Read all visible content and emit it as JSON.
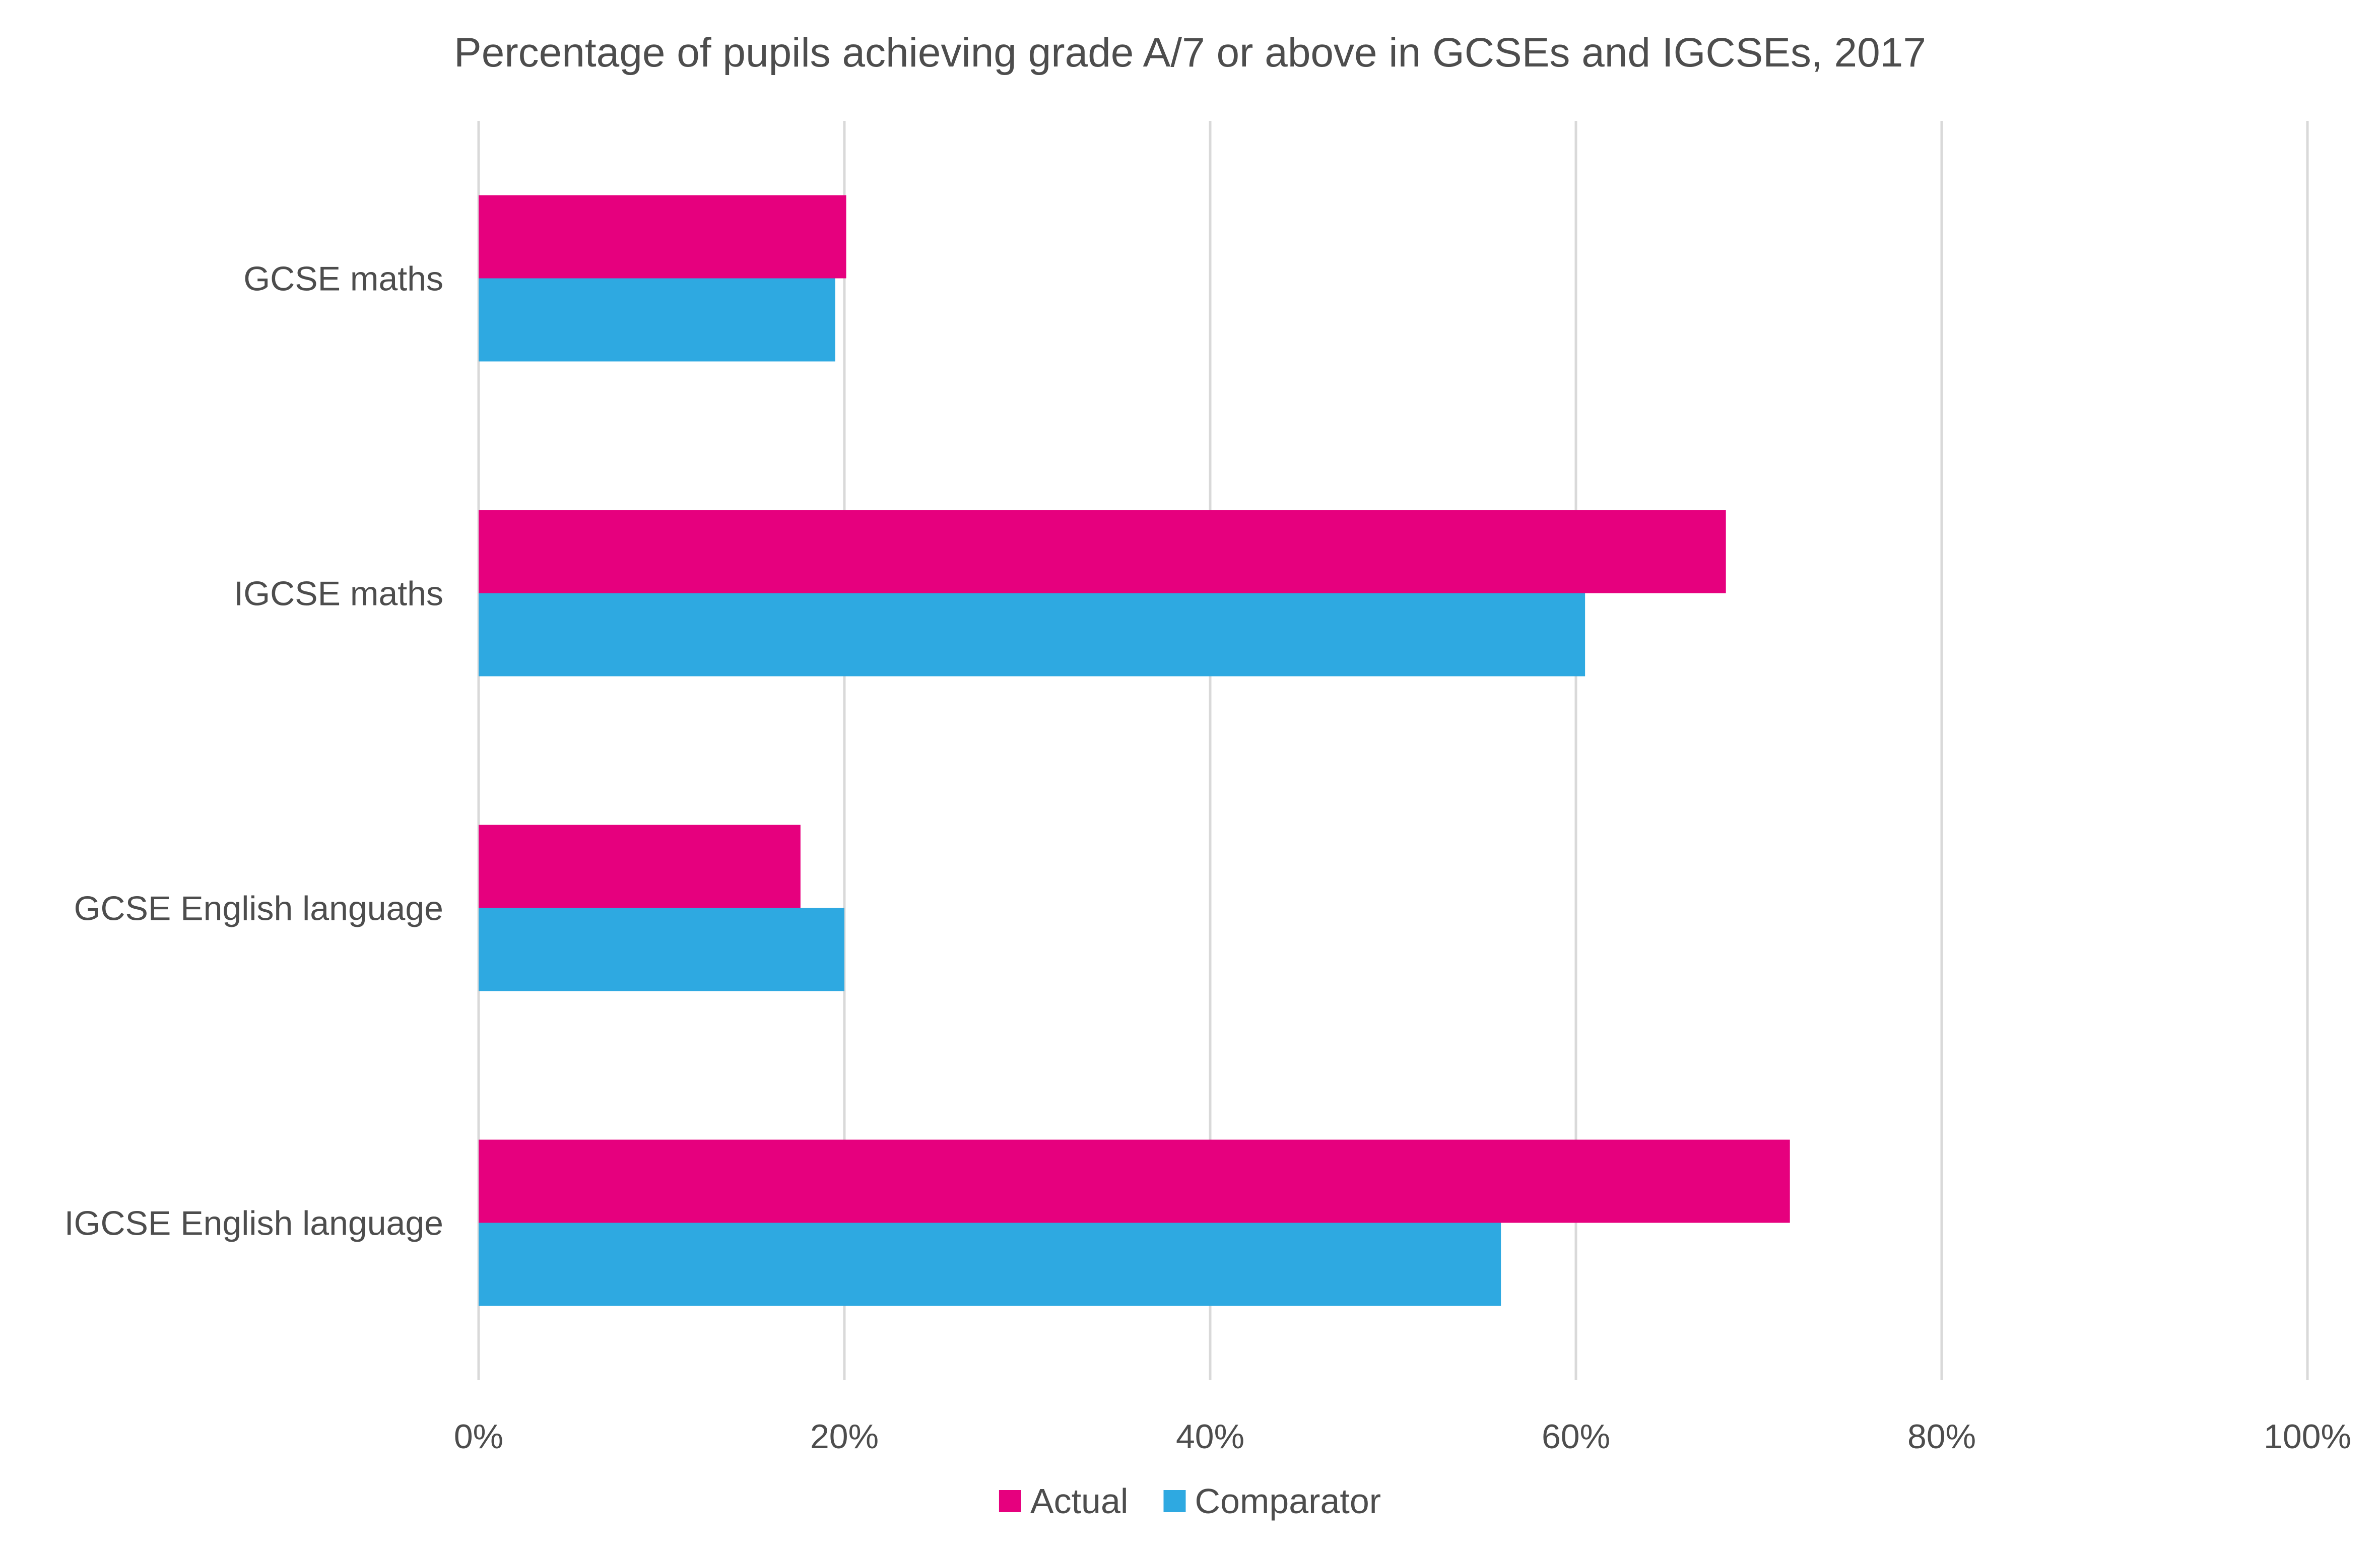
{
  "chart_data": {
    "type": "bar",
    "orientation": "horizontal",
    "title": "Percentage of pupils achieving grade A/7 or above in GCSEs and IGCSEs, 2017",
    "categories": [
      "GCSE maths",
      "IGCSE maths",
      "GCSE English language",
      "IGCSE English language"
    ],
    "series": [
      {
        "name": "Actual",
        "color": "#e6007e",
        "values": [
          20.1,
          68.2,
          17.6,
          71.7
        ]
      },
      {
        "name": "Comparator",
        "color": "#2ea9e1",
        "values": [
          19.5,
          60.5,
          20.0,
          55.9
        ]
      }
    ],
    "xlim": [
      0,
      100
    ],
    "ticks": [
      0,
      20,
      40,
      60,
      80,
      100
    ],
    "tick_labels": [
      "0%",
      "20%",
      "40%",
      "60%",
      "80%",
      "100%"
    ],
    "grid": true,
    "legend_position": "bottom"
  }
}
